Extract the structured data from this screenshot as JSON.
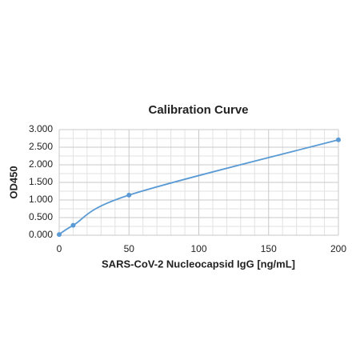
{
  "chart_data": {
    "type": "line",
    "title": "Calibration Curve",
    "x_label": "SARS-CoV-2 Nucleocapsid IgG [ng/mL]",
    "y_label": "OD450",
    "x": [
      0,
      10,
      50,
      200
    ],
    "series": [
      {
        "name": "OD450",
        "color": "#5b9bd5",
        "values": [
          0.02,
          0.28,
          1.14,
          2.71
        ]
      }
    ],
    "xlim": [
      0,
      200
    ],
    "xticks": [
      0,
      50,
      100,
      150,
      200
    ],
    "ylim": [
      0,
      3
    ],
    "yticks": [
      {
        "value": 0,
        "label": "0.000"
      },
      {
        "value": 0.5,
        "label": "0.500"
      },
      {
        "value": 1,
        "label": "1.000"
      },
      {
        "value": 1.5,
        "label": "1.500"
      },
      {
        "value": 2,
        "label": "2.000"
      },
      {
        "value": 2.5,
        "label": "2.500"
      },
      {
        "value": 3,
        "label": "3.000"
      }
    ],
    "grid": true,
    "smooth": true,
    "markers": true
  }
}
